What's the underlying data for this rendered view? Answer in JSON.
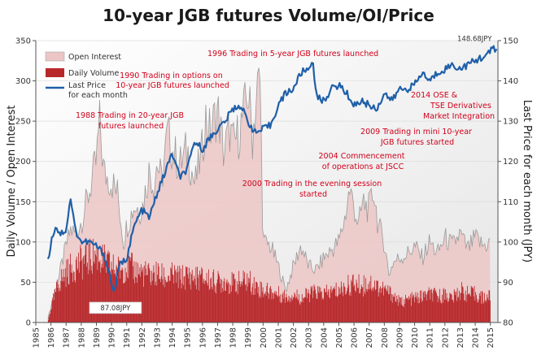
{
  "chart_data": {
    "type": "combo",
    "title": "10-year JGB futures Volume/OI/Price",
    "ylabel_left": "Daily Volume / Open Interest",
    "ylabel_right": "Last Price for each month (JPY)",
    "xlabel": "",
    "ylim_left": [
      0,
      350
    ],
    "ylim_right": [
      80,
      150
    ],
    "yticks_left": [
      "0",
      "50",
      "100",
      "150",
      "200",
      "250",
      "300",
      "350"
    ],
    "yticks_right": [
      "80",
      "90",
      "100",
      "110",
      "120",
      "130",
      "140",
      "150"
    ],
    "year_labels": [
      "1985",
      "1986",
      "1987",
      "1988",
      "1989",
      "1990",
      "1991",
      "1992",
      "1993",
      "1994",
      "1995",
      "1996",
      "1997",
      "1998",
      "1999",
      "2000",
      "2001",
      "2002",
      "2003",
      "2004",
      "2005",
      "2006",
      "2007",
      "2008",
      "2009",
      "2010",
      "2011",
      "2012",
      "2013",
      "2014",
      "2015"
    ],
    "legend": [
      {
        "label": "Open Interest",
        "series": "open_interest"
      },
      {
        "label": "Daily Volume",
        "series": "daily_volume"
      },
      {
        "label": "Last Price for each month",
        "series": "last_price"
      }
    ],
    "series": [
      {
        "name": "Open Interest",
        "axis": "left",
        "style": "area",
        "color": "#e8b9b9",
        "points": [
          [
            1985.8,
            5
          ],
          [
            1986,
            20
          ],
          [
            1986.5,
            55
          ],
          [
            1987,
            95
          ],
          [
            1987.3,
            115
          ],
          [
            1987.6,
            110
          ],
          [
            1988,
            125
          ],
          [
            1988.5,
            160
          ],
          [
            1989,
            200
          ],
          [
            1989.2,
            250
          ],
          [
            1989.5,
            185
          ],
          [
            1990,
            175
          ],
          [
            1990.4,
            160
          ],
          [
            1990.8,
            100
          ],
          [
            1991,
            120
          ],
          [
            1991.5,
            145
          ],
          [
            1992,
            140
          ],
          [
            1992.5,
            190
          ],
          [
            1992.8,
            170
          ],
          [
            1993,
            200
          ],
          [
            1993.3,
            175
          ],
          [
            1993.7,
            235
          ],
          [
            1994,
            215
          ],
          [
            1994.5,
            195
          ],
          [
            1995,
            215
          ],
          [
            1995.5,
            170
          ],
          [
            1996,
            215
          ],
          [
            1996.2,
            255
          ],
          [
            1996.5,
            235
          ],
          [
            1997,
            265
          ],
          [
            1997.4,
            210
          ],
          [
            1997.8,
            240
          ],
          [
            1998,
            220
          ],
          [
            1998.4,
            235
          ],
          [
            1998.8,
            265
          ],
          [
            1999,
            290
          ],
          [
            1999.3,
            230
          ],
          [
            1999.6,
            290
          ],
          [
            1999.8,
            300
          ],
          [
            2000,
            100
          ],
          [
            2000.5,
            95
          ],
          [
            2001,
            70
          ],
          [
            2001.5,
            40
          ],
          [
            2002,
            70
          ],
          [
            2002.5,
            95
          ],
          [
            2003,
            70
          ],
          [
            2003.5,
            65
          ],
          [
            2004,
            80
          ],
          [
            2004.5,
            90
          ],
          [
            2005,
            100
          ],
          [
            2005.4,
            130
          ],
          [
            2005.7,
            165
          ],
          [
            2006,
            145
          ],
          [
            2006.3,
            120
          ],
          [
            2006.6,
            150
          ],
          [
            2007,
            140
          ],
          [
            2007.3,
            165
          ],
          [
            2007.6,
            120
          ],
          [
            2008,
            100
          ],
          [
            2008.3,
            60
          ],
          [
            2008.6,
            75
          ],
          [
            2009,
            80
          ],
          [
            2009.5,
            85
          ],
          [
            2010,
            95
          ],
          [
            2010.5,
            80
          ],
          [
            2011,
            100
          ],
          [
            2011.5,
            85
          ],
          [
            2012,
            105
          ],
          [
            2012.5,
            95
          ],
          [
            2013,
            110
          ],
          [
            2013.5,
            90
          ],
          [
            2014,
            105
          ],
          [
            2014.5,
            95
          ],
          [
            2015,
            100
          ]
        ]
      },
      {
        "name": "Daily Volume",
        "axis": "left",
        "style": "bar",
        "color": "#b8282b",
        "points": [
          [
            1985.8,
            3
          ],
          [
            1986,
            20
          ],
          [
            1986.5,
            50
          ],
          [
            1987,
            62
          ],
          [
            1987.5,
            70
          ],
          [
            1988,
            75
          ],
          [
            1988.5,
            80
          ],
          [
            1989,
            85
          ],
          [
            1989.5,
            75
          ],
          [
            1990,
            68
          ],
          [
            1990.5,
            65
          ],
          [
            1991,
            70
          ],
          [
            1991.5,
            65
          ],
          [
            1992,
            62
          ],
          [
            1992.5,
            58
          ],
          [
            1993,
            60
          ],
          [
            1993.5,
            55
          ],
          [
            1994,
            58
          ],
          [
            1994.5,
            55
          ],
          [
            1995,
            58
          ],
          [
            1995.5,
            55
          ],
          [
            1996,
            55
          ],
          [
            1996.5,
            52
          ],
          [
            1997,
            50
          ],
          [
            1997.5,
            52
          ],
          [
            1998,
            48
          ],
          [
            1998.5,
            50
          ],
          [
            1999,
            52
          ],
          [
            1999.5,
            45
          ],
          [
            2000,
            40
          ],
          [
            2000.5,
            38
          ],
          [
            2001,
            35
          ],
          [
            2001.5,
            32
          ],
          [
            2002,
            35
          ],
          [
            2002.5,
            30
          ],
          [
            2003,
            35
          ],
          [
            2003.5,
            38
          ],
          [
            2004,
            35
          ],
          [
            2004.5,
            38
          ],
          [
            2005,
            40
          ],
          [
            2005.5,
            45
          ],
          [
            2006,
            48
          ],
          [
            2006.5,
            45
          ],
          [
            2007,
            50
          ],
          [
            2007.5,
            45
          ],
          [
            2008,
            40
          ],
          [
            2008.5,
            35
          ],
          [
            2009,
            25
          ],
          [
            2009.5,
            28
          ],
          [
            2010,
            30
          ],
          [
            2010.5,
            32
          ],
          [
            2011,
            35
          ],
          [
            2011.5,
            32
          ],
          [
            2012,
            35
          ],
          [
            2012.5,
            30
          ],
          [
            2013,
            40
          ],
          [
            2013.5,
            35
          ],
          [
            2014,
            35
          ],
          [
            2014.5,
            30
          ],
          [
            2015,
            33
          ]
        ]
      },
      {
        "name": "Last Price for each month",
        "axis": "right",
        "style": "line",
        "color": "#1f5fa8",
        "points": [
          [
            1985.8,
            95
          ],
          [
            1986,
            100
          ],
          [
            1986.3,
            104
          ],
          [
            1986.6,
            102
          ],
          [
            1987,
            103
          ],
          [
            1987.3,
            111
          ],
          [
            1987.6,
            103
          ],
          [
            1988,
            100
          ],
          [
            1988.5,
            100
          ],
          [
            1989,
            99
          ],
          [
            1989.5,
            97
          ],
          [
            1990,
            90
          ],
          [
            1990.15,
            87.08
          ],
          [
            1990.5,
            94
          ],
          [
            1991,
            96
          ],
          [
            1991.5,
            104
          ],
          [
            1992,
            108
          ],
          [
            1992.5,
            106
          ],
          [
            1993,
            112
          ],
          [
            1993.5,
            117
          ],
          [
            1994,
            122
          ],
          [
            1994.5,
            116
          ],
          [
            1995,
            118
          ],
          [
            1995.5,
            125
          ],
          [
            1996,
            123
          ],
          [
            1996.5,
            126
          ],
          [
            1997,
            128
          ],
          [
            1997.5,
            130
          ],
          [
            1998,
            133
          ],
          [
            1998.5,
            134
          ],
          [
            1999,
            130
          ],
          [
            1999.5,
            127
          ],
          [
            2000,
            128
          ],
          [
            2000.5,
            129
          ],
          [
            2001,
            134
          ],
          [
            2001.5,
            137
          ],
          [
            2002,
            138
          ],
          [
            2002.5,
            142
          ],
          [
            2003,
            143
          ],
          [
            2003.3,
            145
          ],
          [
            2003.5,
            136
          ],
          [
            2004,
            135
          ],
          [
            2004.5,
            138
          ],
          [
            2005,
            139
          ],
          [
            2005.5,
            137
          ],
          [
            2006,
            134
          ],
          [
            2006.5,
            135
          ],
          [
            2007,
            134
          ],
          [
            2007.5,
            133
          ],
          [
            2008,
            137
          ],
          [
            2008.5,
            135
          ],
          [
            2009,
            138
          ],
          [
            2009.5,
            138
          ],
          [
            2010,
            139
          ],
          [
            2010.5,
            142
          ],
          [
            2011,
            140
          ],
          [
            2011.5,
            142
          ],
          [
            2012,
            143
          ],
          [
            2012.5,
            144
          ],
          [
            2013,
            143
          ],
          [
            2013.5,
            144
          ],
          [
            2014,
            145
          ],
          [
            2014.5,
            146
          ],
          [
            2015,
            147
          ],
          [
            2015.2,
            148.68
          ],
          [
            2015.4,
            147.5
          ]
        ]
      }
    ],
    "annotations": [
      {
        "text": "1996 Trading in 5-year JGB futures launched"
      },
      {
        "text": "1990 Trading in options on 10-year JGB futures launched"
      },
      {
        "text": "1988 Trading in 20-year JGB futures launched"
      },
      {
        "text": "2014 OSE & TSE Derivatives Market Integration"
      },
      {
        "text": "2009 Trading in mini 10-year JGB futures started"
      },
      {
        "text": "2004 Commencement of operations at JSCC"
      },
      {
        "text": "2000 Trading in the evening session started"
      }
    ],
    "callouts": [
      {
        "text": "148.68JPY",
        "year": 2015.2,
        "value": 148.68
      },
      {
        "text": "87.08JPY",
        "year": 1990.15,
        "value": 87.08
      }
    ]
  },
  "colors": {
    "open_interest_fill": "#ecc5c5",
    "open_interest_line": "#9a9a9a",
    "daily_volume": "#b8282b",
    "last_price": "#1f5fa8",
    "annotation_text": "#d0021b"
  }
}
